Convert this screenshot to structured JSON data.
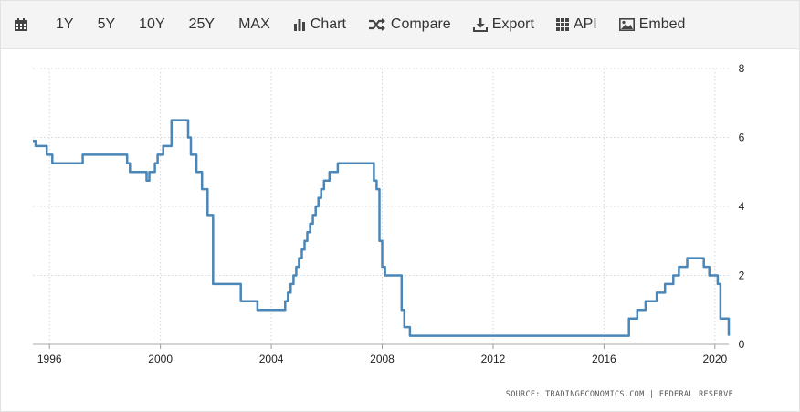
{
  "toolbar": {
    "calendar_icon": "calendar-icon",
    "ranges": [
      "1Y",
      "5Y",
      "10Y",
      "25Y",
      "MAX"
    ],
    "chart_label": "Chart",
    "compare_label": "Compare",
    "export_label": "Export",
    "api_label": "API",
    "embed_label": "Embed",
    "icons": {
      "chart": "bar-chart-icon",
      "compare": "shuffle-icon",
      "export": "download-icon",
      "api": "grid-icon",
      "embed": "image-icon"
    }
  },
  "source_text": "SOURCE: TRADINGECONOMICS.COM | FEDERAL RESERVE",
  "colors": {
    "line": "#4a86b8",
    "grid": "#d6d6d6",
    "text": "#222222"
  },
  "chart_data": {
    "type": "line",
    "title": "",
    "xlabel": "",
    "ylabel": "",
    "xlim": [
      1995.4,
      2020.5
    ],
    "ylim": [
      0,
      8
    ],
    "x_ticks": [
      1996,
      2000,
      2004,
      2008,
      2012,
      2016,
      2020
    ],
    "y_ticks": [
      0,
      2,
      4,
      6,
      8
    ],
    "y_axis_side": "right",
    "grid": true,
    "grid_style": "dotted",
    "step": true,
    "series": [
      {
        "name": "",
        "x": [
          1995.4,
          1995.5,
          1995.9,
          1996.1,
          1997.2,
          1998.8,
          1998.9,
          1999.5,
          1999.6,
          1999.8,
          1999.9,
          2000.1,
          2000.4,
          2001.0,
          2001.1,
          2001.3,
          2001.5,
          2001.7,
          2001.9,
          2002.9,
          2003.5,
          2004.5,
          2004.6,
          2004.7,
          2004.8,
          2004.9,
          2005.0,
          2005.1,
          2005.2,
          2005.3,
          2005.4,
          2005.5,
          2005.6,
          2005.7,
          2005.8,
          2005.9,
          2006.0,
          2006.1,
          2006.2,
          2006.4,
          2006.5,
          2007.7,
          2007.8,
          2007.9,
          2008.0,
          2008.1,
          2008.3,
          2008.7,
          2008.8,
          2009.0,
          2015.9,
          2016.9,
          2017.2,
          2017.5,
          2017.9,
          2018.2,
          2018.5,
          2018.7,
          2019.0,
          2019.5,
          2019.6,
          2019.8,
          2020.1,
          2020.2,
          2020.5
        ],
        "y": [
          5.9,
          5.75,
          5.5,
          5.25,
          5.5,
          5.25,
          5.0,
          4.75,
          5.0,
          5.25,
          5.5,
          5.75,
          6.5,
          6.0,
          5.5,
          5.0,
          4.5,
          3.75,
          1.75,
          1.25,
          1.0,
          1.25,
          1.5,
          1.75,
          2.0,
          2.25,
          2.5,
          2.75,
          3.0,
          3.25,
          3.5,
          3.75,
          4.0,
          4.25,
          4.5,
          4.75,
          4.75,
          5.0,
          5.0,
          5.25,
          5.25,
          4.75,
          4.5,
          3.0,
          2.25,
          2.0,
          2.0,
          1.0,
          0.5,
          0.25,
          0.25,
          0.75,
          1.0,
          1.25,
          1.5,
          1.75,
          2.0,
          2.25,
          2.5,
          2.5,
          2.25,
          2.0,
          1.75,
          0.75,
          0.25
        ]
      }
    ]
  }
}
